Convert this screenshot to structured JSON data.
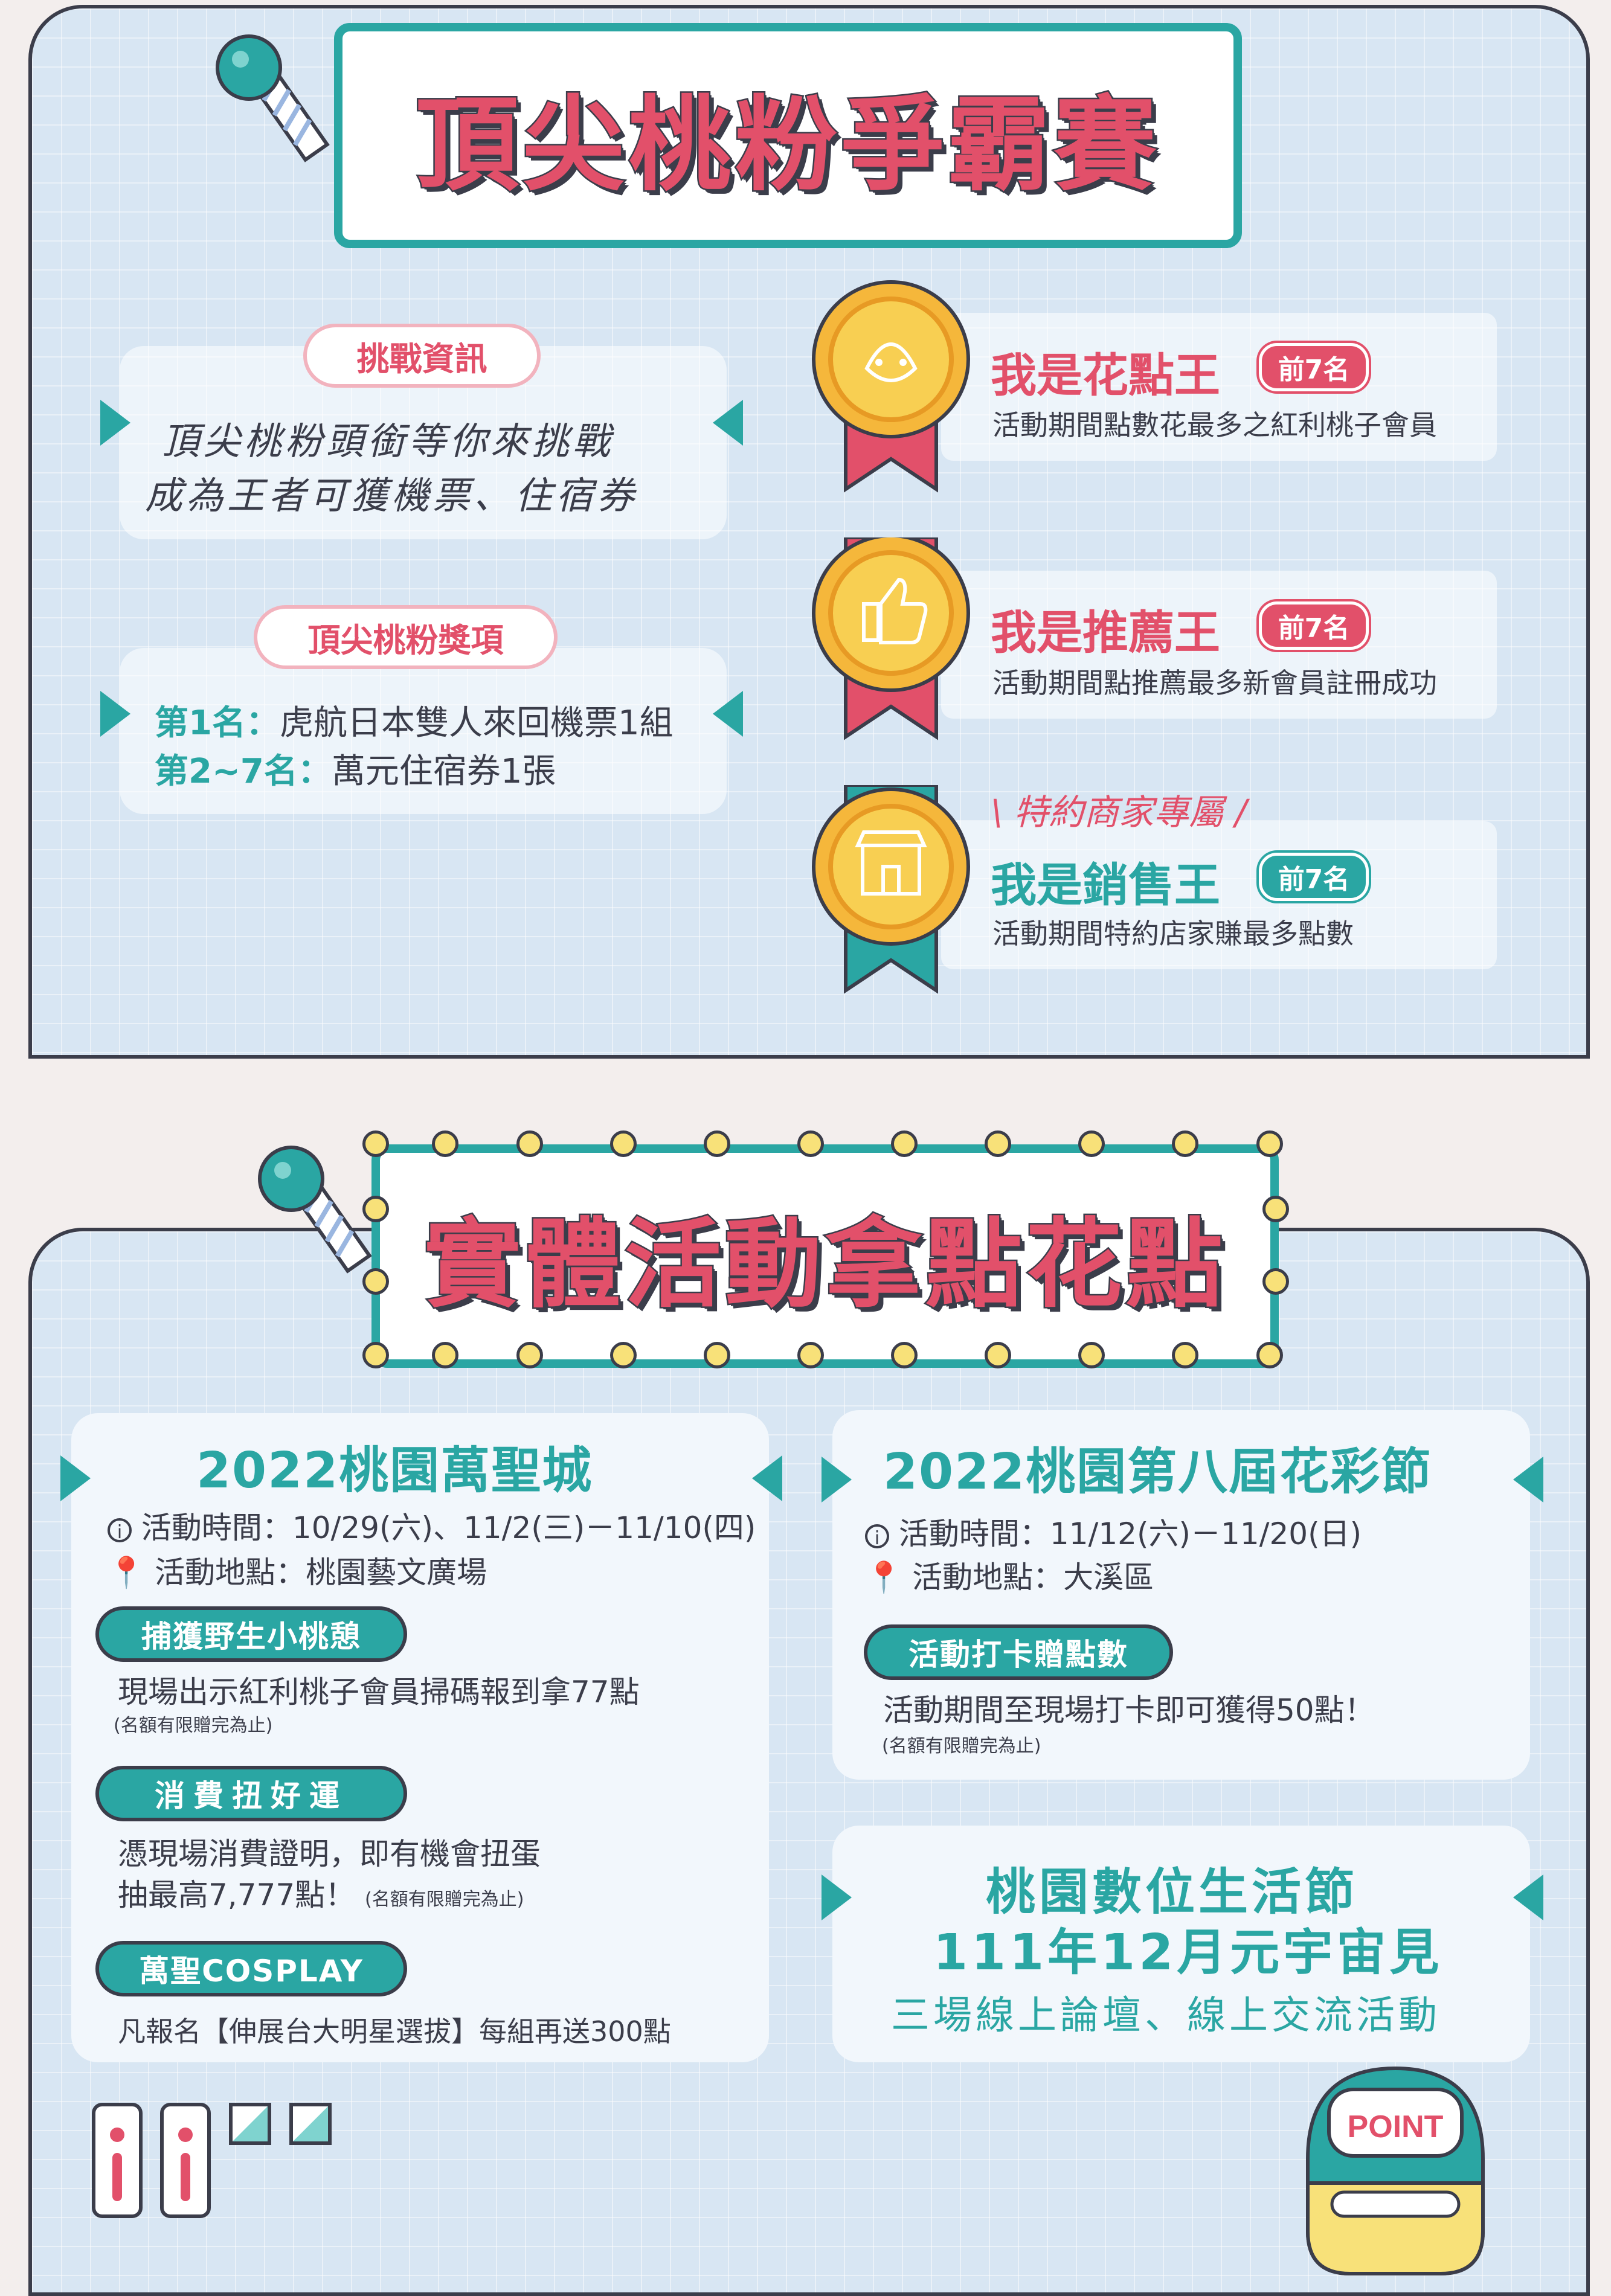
{
  "section1": {
    "title": "頂尖桃粉爭霸賽",
    "challenge_label": "挑戰資訊",
    "challenge_lines": [
      "頂尖桃粉頭銜等你來挑戰",
      "成為王者可獲機票、住宿券"
    ],
    "prize_label": "頂尖桃粉獎項",
    "prizes": [
      {
        "rank": "第1名：",
        "desc": "虎航日本雙人來回機票1組"
      },
      {
        "rank": "第2~7名：",
        "desc": "萬元住宿券1張"
      }
    ],
    "awards": [
      {
        "title": "我是花點王",
        "badge": "前7名",
        "desc": "活動期間點數花最多之紅利桃子會員",
        "icon": "peach-face-icon",
        "ribbon": "#e2506a"
      },
      {
        "title": "我是推薦王",
        "badge": "前7名",
        "desc": "活動期間點推薦最多新會員註冊成功",
        "icon": "thumbs-up-icon",
        "ribbon": "#e2506a"
      },
      {
        "title": "我是銷售王",
        "badge": "前7名",
        "desc": "活動期間特約店家賺最多點數",
        "icon": "shop-icon",
        "ribbon": "#2aa6a3",
        "tag": "特約商家專屬"
      }
    ]
  },
  "section2": {
    "title": "實體活動拿點花點",
    "halloween": {
      "title": "2022桃園萬聖城",
      "time": "活動時間：10/29(六)、11/2(三)－11/10(四)",
      "place": "活動地點：桃園藝文廣場",
      "items": [
        {
          "label": "捕獲野生小桃憩",
          "lines": [
            "現場出示紅利桃子會員掃碼報到拿77點"
          ],
          "note": "(名額有限贈完為止)"
        },
        {
          "label": "消費扭好運",
          "lines": [
            "憑現場消費證明，即有機會扭蛋",
            "抽最高7,777點！"
          ],
          "note": "(名額有限贈完為止)"
        },
        {
          "label": "萬聖COSPLAY",
          "lines": [
            "凡報名【伸展台大明星選拔】每組再送300點"
          ],
          "note": ""
        }
      ]
    },
    "flower": {
      "title": "2022桃園第八屆花彩節",
      "time": "活動時間：11/12(六)－11/20(日)",
      "place": "活動地點：大溪區",
      "item_label": "活動打卡贈點數",
      "item_line": "活動期間至現場打卡即可獲得50點！",
      "note": "(名額有限贈完為止)"
    },
    "digital": {
      "line1": "桃園數位生活節",
      "line2": "111年12月元宇宙見",
      "line3": "三場線上論壇、線上交流活動"
    },
    "point_sign": "POINT"
  },
  "colors": {
    "accent_teal": "#2aa6a3",
    "accent_pink": "#e2506a",
    "ink": "#3b3d4a"
  }
}
